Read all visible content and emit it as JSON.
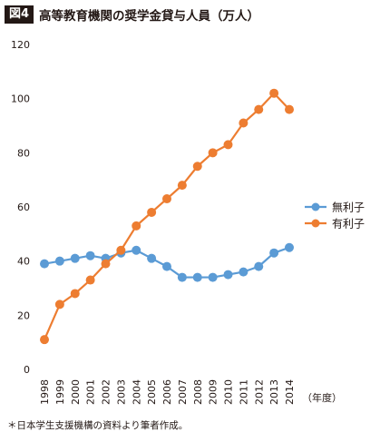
{
  "header": {
    "badge": "図4",
    "title": "高等教育機関の奨学金貸与人員（万人）"
  },
  "footnote": "＊日本学生支援機構の資料より筆者作成。",
  "chart_data": {
    "type": "line",
    "title": "高等教育機関の奨学金貸与人員（万人）",
    "xlabel": "（年度）",
    "ylabel": "",
    "x": [
      "1998",
      "1999",
      "2000",
      "2001",
      "2002",
      "2003",
      "2004",
      "2005",
      "2006",
      "2007",
      "2008",
      "2009",
      "2010",
      "2011",
      "2012",
      "2013",
      "2014"
    ],
    "ylim": [
      0,
      120
    ],
    "yticks": [
      0,
      20,
      40,
      60,
      80,
      100,
      120
    ],
    "grid": false,
    "legend_position": "right",
    "series": [
      {
        "name": "無利子",
        "color": "#5b9bd5",
        "values": [
          39,
          40,
          41,
          42,
          41,
          43,
          44,
          41,
          38,
          34,
          34,
          34,
          35,
          36,
          38,
          43,
          45
        ]
      },
      {
        "name": "有利子",
        "color": "#ed7d31",
        "values": [
          11,
          24,
          28,
          33,
          39,
          44,
          53,
          58,
          63,
          68,
          75,
          80,
          83,
          91,
          96,
          102,
          96
        ]
      }
    ]
  }
}
